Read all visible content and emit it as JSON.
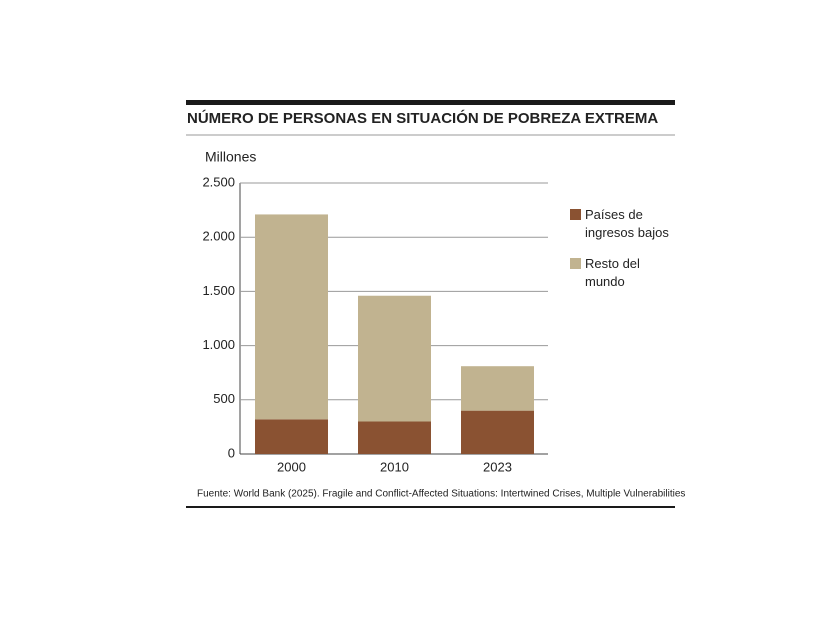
{
  "chart_data": {
    "type": "stacked-bar",
    "title": "NÚMERO DE PERSONAS EN SITUACIÓN DE POBREZA EXTREMA",
    "y_label": "Millones",
    "categories": [
      "2000",
      "2010",
      "2023"
    ],
    "series": [
      {
        "name": "Países de ingresos bajos",
        "color": "#8a5232",
        "values": [
          320,
          300,
          400
        ]
      },
      {
        "name": "Resto del mundo",
        "color": "#c1b390",
        "values": [
          1890,
          1160,
          410
        ]
      }
    ],
    "ylim": [
      0,
      2500
    ],
    "yticks": [
      0,
      500,
      {
        "value": 1000,
        "label": "1.000"
      },
      {
        "value": 1500,
        "label": "1.500"
      },
      {
        "value": 2000,
        "label": "2.000"
      },
      {
        "value": 2500,
        "label": "2.500"
      }
    ],
    "grid": true,
    "source": "Fuente: World Bank (2025). Fragile and Conflict-Affected Situations: Intertwined Crises, Multiple Vulnerabilities"
  }
}
